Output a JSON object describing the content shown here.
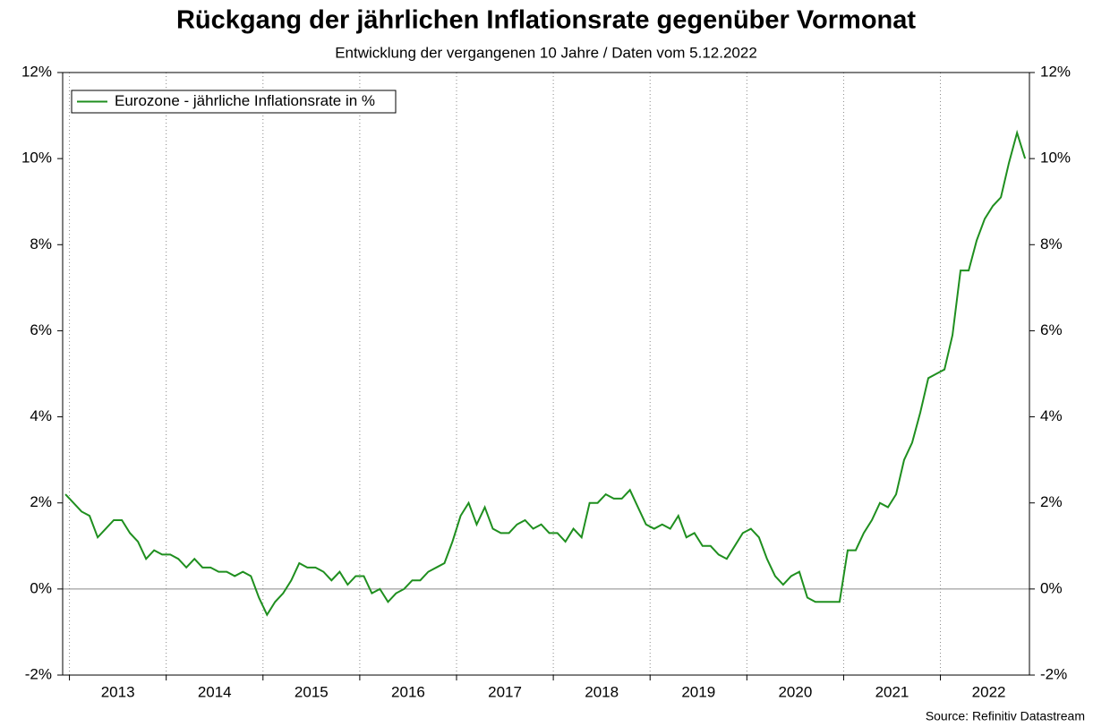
{
  "chart_data": {
    "type": "line",
    "title": "Rückgang der jährlichen Inflationsrate gegenüber Vormonat",
    "subtitle": "Entwicklung der vergangenen 10 Jahre / Daten vom 5.12.2022",
    "source": "Source: Refinitiv Datastream",
    "legend": "upper left",
    "x": [
      2012.958,
      2013.042,
      2013.125,
      2013.208,
      2013.292,
      2013.375,
      2013.458,
      2013.542,
      2013.625,
      2013.708,
      2013.792,
      2013.875,
      2013.958,
      2014.042,
      2014.125,
      2014.208,
      2014.292,
      2014.375,
      2014.458,
      2014.542,
      2014.625,
      2014.708,
      2014.792,
      2014.875,
      2014.958,
      2015.042,
      2015.125,
      2015.208,
      2015.292,
      2015.375,
      2015.458,
      2015.542,
      2015.625,
      2015.708,
      2015.792,
      2015.875,
      2015.958,
      2016.042,
      2016.125,
      2016.208,
      2016.292,
      2016.375,
      2016.458,
      2016.542,
      2016.625,
      2016.708,
      2016.792,
      2016.875,
      2016.958,
      2017.042,
      2017.125,
      2017.208,
      2017.292,
      2017.375,
      2017.458,
      2017.542,
      2017.625,
      2017.708,
      2017.792,
      2017.875,
      2017.958,
      2018.042,
      2018.125,
      2018.208,
      2018.292,
      2018.375,
      2018.458,
      2018.542,
      2018.625,
      2018.708,
      2018.792,
      2018.875,
      2018.958,
      2019.042,
      2019.125,
      2019.208,
      2019.292,
      2019.375,
      2019.458,
      2019.542,
      2019.625,
      2019.708,
      2019.792,
      2019.875,
      2019.958,
      2020.042,
      2020.125,
      2020.208,
      2020.292,
      2020.375,
      2020.458,
      2020.542,
      2020.625,
      2020.708,
      2020.792,
      2020.875,
      2020.958,
      2021.042,
      2021.125,
      2021.208,
      2021.292,
      2021.375,
      2021.458,
      2021.542,
      2021.625,
      2021.708,
      2021.792,
      2021.875,
      2021.958,
      2022.042,
      2022.125,
      2022.208,
      2022.292,
      2022.375,
      2022.458,
      2022.542,
      2022.625,
      2022.708,
      2022.792,
      2022.875
    ],
    "series": [
      {
        "name": "Eurozone - jährliche Inflationsrate in %",
        "color": "#1f8f1f",
        "values": [
          2.2,
          2.0,
          1.8,
          1.7,
          1.2,
          1.4,
          1.6,
          1.6,
          1.3,
          1.1,
          0.7,
          0.9,
          0.8,
          0.8,
          0.7,
          0.5,
          0.7,
          0.5,
          0.5,
          0.4,
          0.4,
          0.3,
          0.4,
          0.3,
          -0.2,
          -0.6,
          -0.3,
          -0.1,
          0.2,
          0.6,
          0.5,
          0.5,
          0.4,
          0.2,
          0.4,
          0.1,
          0.3,
          0.3,
          -0.1,
          0.0,
          -0.3,
          -0.1,
          0.0,
          0.2,
          0.2,
          0.4,
          0.5,
          0.6,
          1.1,
          1.7,
          2.0,
          1.5,
          1.9,
          1.4,
          1.3,
          1.3,
          1.5,
          1.6,
          1.4,
          1.5,
          1.3,
          1.3,
          1.1,
          1.4,
          1.2,
          2.0,
          2.0,
          2.2,
          2.1,
          2.1,
          2.3,
          1.9,
          1.5,
          1.4,
          1.5,
          1.4,
          1.7,
          1.2,
          1.3,
          1.0,
          1.0,
          0.8,
          0.7,
          1.0,
          1.3,
          1.4,
          1.2,
          0.7,
          0.3,
          0.1,
          0.3,
          0.4,
          -0.2,
          -0.3,
          -0.3,
          -0.3,
          -0.3,
          0.9,
          0.9,
          1.3,
          1.6,
          2.0,
          1.9,
          2.2,
          3.0,
          3.4,
          4.1,
          4.9,
          5.0,
          5.1,
          5.9,
          7.4,
          7.4,
          8.1,
          8.6,
          8.9,
          9.1,
          9.9,
          10.6,
          10.0
        ]
      }
    ],
    "xlim": [
      2012.93,
      2022.92
    ],
    "xticks": [
      {
        "value": 2013.5,
        "label": "2013"
      },
      {
        "value": 2014.5,
        "label": "2014"
      },
      {
        "value": 2015.5,
        "label": "2015"
      },
      {
        "value": 2016.5,
        "label": "2016"
      },
      {
        "value": 2017.5,
        "label": "2017"
      },
      {
        "value": 2018.5,
        "label": "2018"
      },
      {
        "value": 2019.5,
        "label": "2019"
      },
      {
        "value": 2020.5,
        "label": "2020"
      },
      {
        "value": 2021.5,
        "label": "2021"
      },
      {
        "value": 2022.5,
        "label": "2022"
      }
    ],
    "ylim": [
      -2,
      12
    ],
    "yticks": [
      {
        "value": -2,
        "label": "-2%"
      },
      {
        "value": 0,
        "label": "0%"
      },
      {
        "value": 2,
        "label": "2%"
      },
      {
        "value": 4,
        "label": "4%"
      },
      {
        "value": 6,
        "label": "6%"
      },
      {
        "value": 8,
        "label": "8%"
      },
      {
        "value": 10,
        "label": "10%"
      },
      {
        "value": 12,
        "label": "12%"
      }
    ],
    "grid": true
  }
}
